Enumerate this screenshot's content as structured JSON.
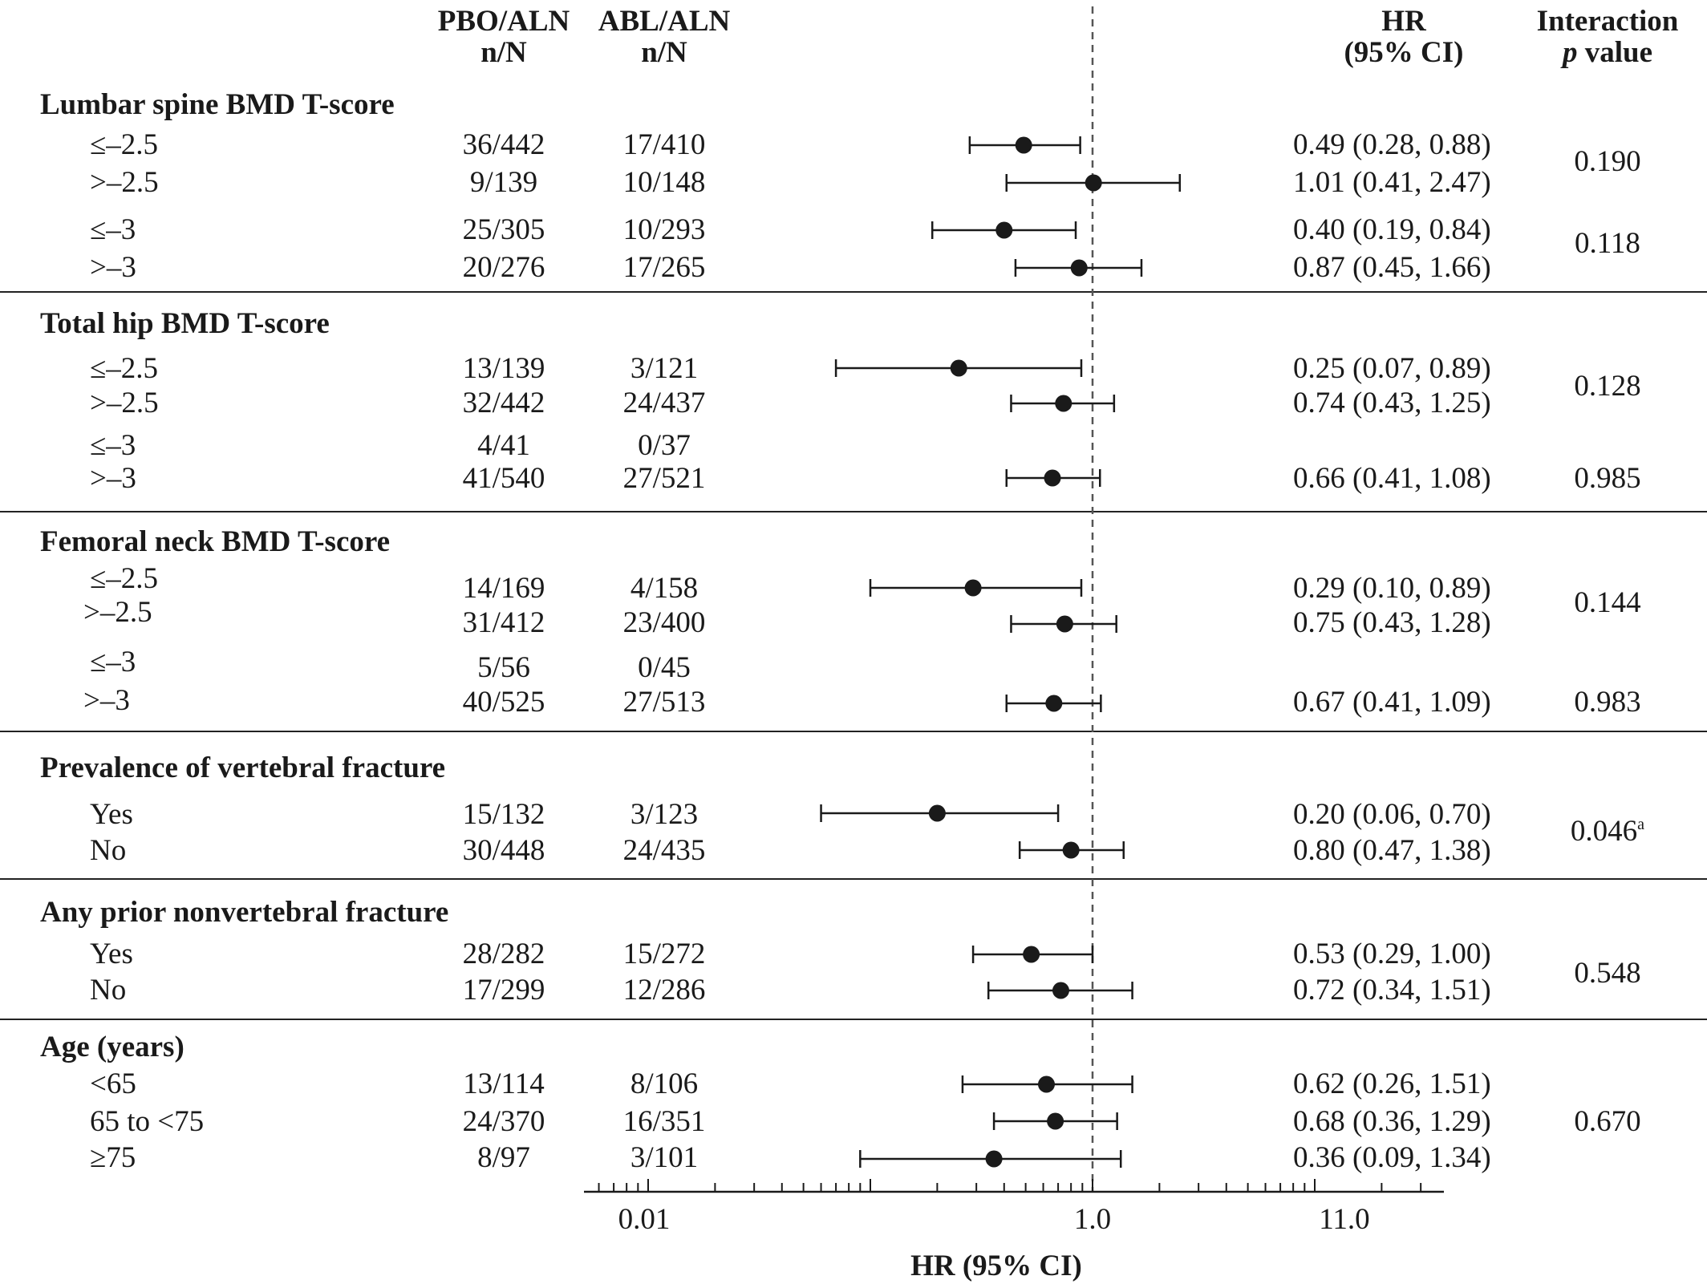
{
  "headers": {
    "pbo_1": "PBO/ALN",
    "pbo_2": "n/N",
    "abl_1": "ABL/ALN",
    "abl_2": "n/N",
    "hr_1": "HR",
    "hr_2": "(95% CI)",
    "p_1": "Interaction",
    "p_2_italic": "p",
    "p_2_rest": " value"
  },
  "sections": [
    {
      "title": "Lumbar spine BMD T-score"
    },
    {
      "title": "Total hip BMD T-score"
    },
    {
      "title": "Femoral neck BMD T-score"
    },
    {
      "title": "Prevalence of vertebral fracture"
    },
    {
      "title": "Any prior nonvertebral fracture"
    },
    {
      "title": "Age (years)"
    }
  ],
  "rows": [
    {
      "label": "≤–2.5",
      "pbo": "36/442",
      "abl": "17/410",
      "ci_text": "0.49 (0.28, 0.88)"
    },
    {
      "label": ">–2.5",
      "pbo": "9/139",
      "abl": "10/148",
      "ci_text": "1.01 (0.41, 2.47)"
    },
    {
      "label": "≤–3",
      "pbo": "25/305",
      "abl": "10/293",
      "ci_text": "0.40 (0.19, 0.84)"
    },
    {
      "label": ">–3",
      "pbo": "20/276",
      "abl": "17/265",
      "ci_text": "0.87 (0.45, 1.66)"
    },
    {
      "label": "≤–2.5",
      "pbo": "13/139",
      "abl": "3/121",
      "ci_text": "0.25 (0.07, 0.89)"
    },
    {
      "label": ">–2.5",
      "pbo": "32/442",
      "abl": "24/437",
      "ci_text": "0.74 (0.43, 1.25)"
    },
    {
      "label": "≤–3",
      "pbo": "4/41",
      "abl": "0/37",
      "ci_text": ""
    },
    {
      "label": ">–3",
      "pbo": "41/540",
      "abl": "27/521",
      "ci_text": "0.66 (0.41, 1.08)"
    },
    {
      "label": "≤–2.5",
      "pbo": "14/169",
      "abl": "4/158",
      "ci_text": "0.29 (0.10, 0.89)"
    },
    {
      "label": ">–2.5",
      "pbo": "31/412",
      "abl": "23/400",
      "ci_text": "0.75 (0.43, 1.28)"
    },
    {
      "label": "≤–3",
      "pbo": "5/56",
      "abl": "0/45",
      "ci_text": ""
    },
    {
      "label": ">–3",
      "pbo": "40/525",
      "abl": "27/513",
      "ci_text": "0.67 (0.41, 1.09)"
    },
    {
      "label": "Yes",
      "pbo": "15/132",
      "abl": "3/123",
      "ci_text": "0.20 (0.06, 0.70)"
    },
    {
      "label": "No",
      "pbo": "30/448",
      "abl": "24/435",
      "ci_text": "0.80 (0.47, 1.38)"
    },
    {
      "label": "Yes",
      "pbo": "28/282",
      "abl": "15/272",
      "ci_text": "0.53 (0.29, 1.00)"
    },
    {
      "label": "No",
      "pbo": "17/299",
      "abl": "12/286",
      "ci_text": "0.72 (0.34, 1.51)"
    },
    {
      "label": "<65",
      "pbo": "13/114",
      "abl": "8/106",
      "ci_text": "0.62 (0.26, 1.51)"
    },
    {
      "label": "65 to <75",
      "pbo": "24/370",
      "abl": "16/351",
      "ci_text": "0.68 (0.36, 1.29)"
    },
    {
      "label": "≥75",
      "pbo": "8/97",
      "abl": "3/101",
      "ci_text": "0.36 (0.09, 1.34)"
    }
  ],
  "pvalues": [
    "0.190",
    "0.118",
    "0.128",
    "0.985",
    "0.144",
    "0.983",
    "0.046",
    "0.548",
    "0.670"
  ],
  "p_footnote": "a",
  "chart_data": {
    "type": "forest",
    "x_scale": "log",
    "xlabel": "HR (95% CI)",
    "x_ticks": [
      "0.01",
      "1.0",
      "11.0"
    ],
    "reference_line": 1.0,
    "points": [
      {
        "hr": 0.49,
        "lo": 0.28,
        "hi": 0.88
      },
      {
        "hr": 1.01,
        "lo": 0.41,
        "hi": 2.47
      },
      {
        "hr": 0.4,
        "lo": 0.19,
        "hi": 0.84
      },
      {
        "hr": 0.87,
        "lo": 0.45,
        "hi": 1.66
      },
      {
        "hr": 0.25,
        "lo": 0.07,
        "hi": 0.89
      },
      {
        "hr": 0.74,
        "lo": 0.43,
        "hi": 1.25
      },
      null,
      {
        "hr": 0.66,
        "lo": 0.41,
        "hi": 1.08
      },
      {
        "hr": 0.29,
        "lo": 0.1,
        "hi": 0.89
      },
      {
        "hr": 0.75,
        "lo": 0.43,
        "hi": 1.28
      },
      null,
      {
        "hr": 0.67,
        "lo": 0.41,
        "hi": 1.09
      },
      {
        "hr": 0.2,
        "lo": 0.06,
        "hi": 0.7
      },
      {
        "hr": 0.8,
        "lo": 0.47,
        "hi": 1.38
      },
      {
        "hr": 0.53,
        "lo": 0.29,
        "hi": 1.0
      },
      {
        "hr": 0.72,
        "lo": 0.34,
        "hi": 1.51
      },
      {
        "hr": 0.62,
        "lo": 0.26,
        "hi": 1.51
      },
      {
        "hr": 0.68,
        "lo": 0.36,
        "hi": 1.29
      },
      {
        "hr": 0.36,
        "lo": 0.09,
        "hi": 1.34
      }
    ]
  }
}
